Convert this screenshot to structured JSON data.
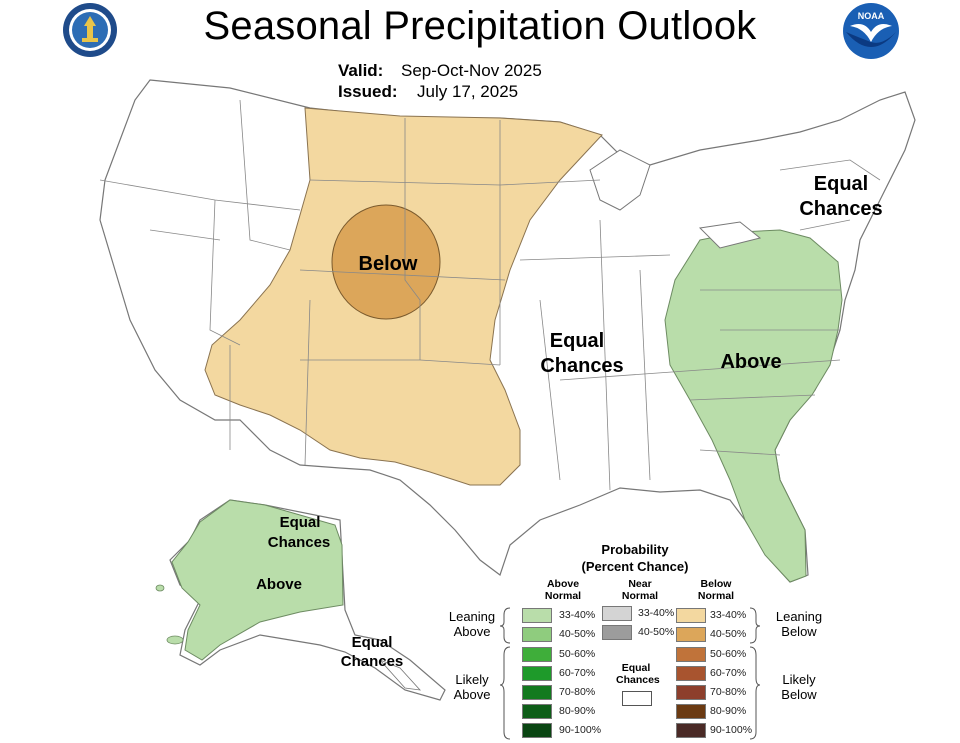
{
  "header": {
    "title": "Seasonal Precipitation Outlook",
    "valid_label": "Valid:",
    "valid_value": "Sep-Oct-Nov 2025",
    "issued_label": "Issued:",
    "issued_value": "July 17, 2025",
    "noaa_text": "NOAA"
  },
  "map": {
    "regions": [
      {
        "id": "west_central",
        "category": "Below Normal",
        "probability": "33-40%",
        "color": "#f3d8a0"
      },
      {
        "id": "central_rockies_core",
        "category": "Below Normal",
        "probability": "40-50%",
        "color": "#dca65a"
      },
      {
        "id": "east_coast",
        "category": "Above Normal",
        "probability": "33-40%",
        "color": "#b9ddaa"
      },
      {
        "id": "alaska_west",
        "category": "Above Normal",
        "probability": "33-40%",
        "color": "#b9ddaa"
      }
    ],
    "labels": {
      "below": "Below",
      "above_east": "Above",
      "above_alaska": "Above",
      "ec_central_1": "Equal",
      "ec_central_2": "Chances",
      "ec_ne_1": "Equal",
      "ec_ne_2": "Chances",
      "ec_ak_n_1": "Equal",
      "ec_ak_n_2": "Chances",
      "ec_ak_s_1": "Equal",
      "ec_ak_s_2": "Chances"
    }
  },
  "legend": {
    "title_1": "Probability",
    "title_2": "(Percent Chance)",
    "above_header": "Above Normal",
    "near_header": "Near Normal",
    "below_header": "Below Normal",
    "leaning_above": "Leaning Above",
    "likely_above": "Likely Above",
    "leaning_below": "Leaning Below",
    "likely_below": "Likely Below",
    "equal_chances": "Equal Chances",
    "above_bins": [
      {
        "label": "33-40%",
        "color": "#b9ddaa"
      },
      {
        "label": "40-50%",
        "color": "#8fcc7e"
      },
      {
        "label": "50-60%",
        "color": "#3fae3a"
      },
      {
        "label": "60-70%",
        "color": "#1e9a2a"
      },
      {
        "label": "70-80%",
        "color": "#137a1f"
      },
      {
        "label": "80-90%",
        "color": "#0e5e18"
      },
      {
        "label": "90-100%",
        "color": "#0a4512"
      }
    ],
    "near_bins": [
      {
        "label": "33-40%",
        "color": "#d4d4d4"
      },
      {
        "label": "40-50%",
        "color": "#9c9c9c"
      }
    ],
    "below_bins": [
      {
        "label": "33-40%",
        "color": "#f3d8a0"
      },
      {
        "label": "40-50%",
        "color": "#dca65a"
      },
      {
        "label": "50-60%",
        "color": "#c0733a"
      },
      {
        "label": "60-70%",
        "color": "#a8542f"
      },
      {
        "label": "70-80%",
        "color": "#8d3f2c"
      },
      {
        "label": "80-90%",
        "color": "#6b3a12"
      },
      {
        "label": "90-100%",
        "color": "#4a2a26"
      }
    ]
  }
}
